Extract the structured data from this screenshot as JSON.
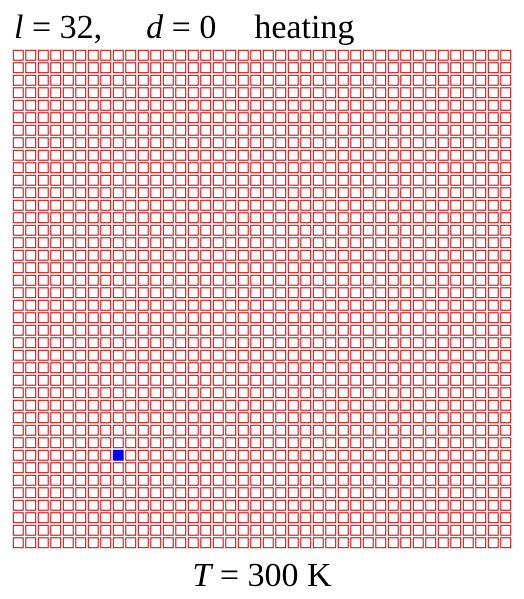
{
  "header": {
    "l_symbol": "l",
    "l_value": "= 32,",
    "d_symbol": "d",
    "d_value": "= 0",
    "mode": "heating"
  },
  "lattice": {
    "size": 40,
    "cell_color": "#cc0000",
    "flipped_color": "#0000ff",
    "flipped_cells": [
      {
        "row": 32,
        "col": 8
      }
    ]
  },
  "footer": {
    "t_symbol": "T",
    "t_value": "= 300 K"
  }
}
